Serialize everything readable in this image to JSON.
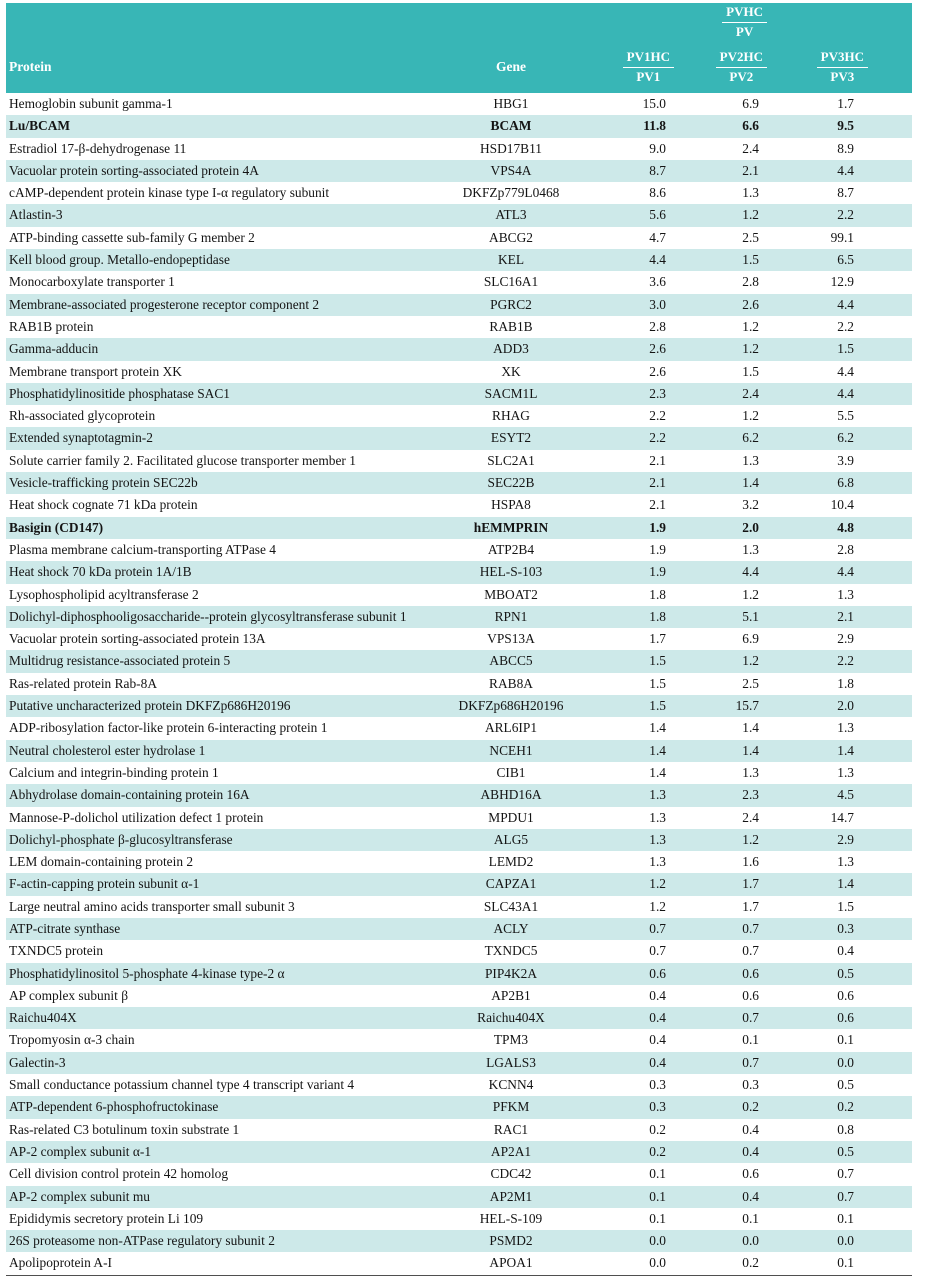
{
  "colors": {
    "header_bg": "#38b6b6",
    "stripe_bg": "#cde9e9",
    "text": "#141414"
  },
  "table": {
    "header": {
      "group_label": {
        "top": "PVHC",
        "bottom": "PV"
      },
      "protein_label": "Protein",
      "gene_label": "Gene",
      "ratio_columns": [
        {
          "top": "PV1HC",
          "bottom": "PV1"
        },
        {
          "top": "PV2HC",
          "bottom": "PV2"
        },
        {
          "top": "PV3HC",
          "bottom": "PV3"
        }
      ]
    },
    "rows": [
      {
        "protein": "Hemoglobin subunit gamma-1",
        "gene": "HBG1",
        "values": [
          "15.0",
          "6.9",
          "1.7"
        ],
        "bold": false
      },
      {
        "protein": "Lu/BCAM",
        "gene": "BCAM",
        "values": [
          "11.8",
          "6.6",
          "9.5"
        ],
        "bold": true
      },
      {
        "protein": "Estradiol 17-β-dehydrogenase 11",
        "gene": "HSD17B11",
        "values": [
          "9.0",
          "2.4",
          "8.9"
        ],
        "bold": false
      },
      {
        "protein": "Vacuolar protein sorting-associated protein 4A",
        "gene": "VPS4A",
        "values": [
          "8.7",
          "2.1",
          "4.4"
        ],
        "bold": false
      },
      {
        "protein": "cAMP-dependent protein kinase type I-α regulatory subunit",
        "gene": "DKFZp779L0468",
        "values": [
          "8.6",
          "1.3",
          "8.7"
        ],
        "bold": false
      },
      {
        "protein": "Atlastin-3",
        "gene": "ATL3",
        "values": [
          "5.6",
          "1.2",
          "2.2"
        ],
        "bold": false
      },
      {
        "protein": "ATP-binding cassette sub-family G member 2",
        "gene": "ABCG2",
        "values": [
          "4.7",
          "2.5",
          "99.1"
        ],
        "bold": false
      },
      {
        "protein": "Kell blood group. Metallo-endopeptidase",
        "gene": "KEL",
        "values": [
          "4.4",
          "1.5",
          "6.5"
        ],
        "bold": false
      },
      {
        "protein": "Monocarboxylate transporter 1",
        "gene": "SLC16A1",
        "values": [
          "3.6",
          "2.8",
          "12.9"
        ],
        "bold": false
      },
      {
        "protein": "Membrane-associated progesterone receptor component 2",
        "gene": "PGRC2",
        "values": [
          "3.0",
          "2.6",
          "4.4"
        ],
        "bold": false
      },
      {
        "protein": "RAB1B protein",
        "gene": "RAB1B",
        "values": [
          "2.8",
          "1.2",
          "2.2"
        ],
        "bold": false
      },
      {
        "protein": "Gamma-adducin",
        "gene": "ADD3",
        "values": [
          "2.6",
          "1.2",
          "1.5"
        ],
        "bold": false
      },
      {
        "protein": "Membrane transport protein XK",
        "gene": "XK",
        "values": [
          "2.6",
          "1.5",
          "4.4"
        ],
        "bold": false
      },
      {
        "protein": "Phosphatidylinositide phosphatase SAC1",
        "gene": "SACM1L",
        "values": [
          "2.3",
          "2.4",
          "4.4"
        ],
        "bold": false
      },
      {
        "protein": "Rh-associated glycoprotein",
        "gene": "RHAG",
        "values": [
          "2.2",
          "1.2",
          "5.5"
        ],
        "bold": false
      },
      {
        "protein": "Extended synaptotagmin-2",
        "gene": "ESYT2",
        "values": [
          "2.2",
          "6.2",
          "6.2"
        ],
        "bold": false
      },
      {
        "protein": "Solute carrier family 2. Facilitated glucose transporter member 1",
        "gene": "SLC2A1",
        "values": [
          "2.1",
          "1.3",
          "3.9"
        ],
        "bold": false
      },
      {
        "protein": "Vesicle-trafficking protein SEC22b",
        "gene": "SEC22B",
        "values": [
          "2.1",
          "1.4",
          "6.8"
        ],
        "bold": false
      },
      {
        "protein": "Heat shock cognate 71 kDa protein",
        "gene": "HSPA8",
        "values": [
          "2.1",
          "3.2",
          "10.4"
        ],
        "bold": false
      },
      {
        "protein": "Basigin (CD147)",
        "gene": "hEMMPRIN",
        "values": [
          "1.9",
          "2.0",
          "4.8"
        ],
        "bold": true
      },
      {
        "protein": "Plasma membrane calcium-transporting ATPase 4",
        "gene": "ATP2B4",
        "values": [
          "1.9",
          "1.3",
          "2.8"
        ],
        "bold": false
      },
      {
        "protein": "Heat shock 70 kDa protein 1A/1B",
        "gene": "HEL-S-103",
        "values": [
          "1.9",
          "4.4",
          "4.4"
        ],
        "bold": false
      },
      {
        "protein": "Lysophospholipid acyltransferase 2",
        "gene": "MBOAT2",
        "values": [
          "1.8",
          "1.2",
          "1.3"
        ],
        "bold": false
      },
      {
        "protein": "Dolichyl-diphosphooligosaccharide--protein glycosyltransferase subunit 1",
        "gene": "RPN1",
        "values": [
          "1.8",
          "5.1",
          "2.1"
        ],
        "bold": false
      },
      {
        "protein": "Vacuolar protein sorting-associated protein 13A",
        "gene": "VPS13A",
        "values": [
          "1.7",
          "6.9",
          "2.9"
        ],
        "bold": false
      },
      {
        "protein": "Multidrug resistance-associated protein 5",
        "gene": "ABCC5",
        "values": [
          "1.5",
          "1.2",
          "2.2"
        ],
        "bold": false
      },
      {
        "protein": "Ras-related protein Rab-8A",
        "gene": "RAB8A",
        "values": [
          "1.5",
          "2.5",
          "1.8"
        ],
        "bold": false
      },
      {
        "protein": "Putative uncharacterized protein DKFZp686H20196",
        "gene": "DKFZp686H20196",
        "values": [
          "1.5",
          "15.7",
          "2.0"
        ],
        "bold": false
      },
      {
        "protein": "ADP-ribosylation factor-like protein 6-interacting protein 1",
        "gene": "ARL6IP1",
        "values": [
          "1.4",
          "1.4",
          "1.3"
        ],
        "bold": false
      },
      {
        "protein": "Neutral cholesterol ester hydrolase 1",
        "gene": "NCEH1",
        "values": [
          "1.4",
          "1.4",
          "1.4"
        ],
        "bold": false
      },
      {
        "protein": "Calcium and integrin-binding protein 1",
        "gene": "CIB1",
        "values": [
          "1.4",
          "1.3",
          "1.3"
        ],
        "bold": false
      },
      {
        "protein": "Abhydrolase domain-containing protein 16A",
        "gene": "ABHD16A",
        "values": [
          "1.3",
          "2.3",
          "4.5"
        ],
        "bold": false
      },
      {
        "protein": "Mannose-P-dolichol utilization defect 1 protein",
        "gene": "MPDU1",
        "values": [
          "1.3",
          "2.4",
          "14.7"
        ],
        "bold": false
      },
      {
        "protein": "Dolichyl-phosphate β-glucosyltransferase",
        "gene": "ALG5",
        "values": [
          "1.3",
          "1.2",
          "2.9"
        ],
        "bold": false
      },
      {
        "protein": "LEM domain-containing protein 2",
        "gene": "LEMD2",
        "values": [
          "1.3",
          "1.6",
          "1.3"
        ],
        "bold": false
      },
      {
        "protein": "F-actin-capping protein subunit α-1",
        "gene": "CAPZA1",
        "values": [
          "1.2",
          "1.7",
          "1.4"
        ],
        "bold": false
      },
      {
        "protein": "Large neutral amino acids transporter small subunit 3",
        "gene": "SLC43A1",
        "values": [
          "1.2",
          "1.7",
          "1.5"
        ],
        "bold": false
      },
      {
        "protein": "ATP-citrate synthase",
        "gene": "ACLY",
        "values": [
          "0.7",
          "0.7",
          "0.3"
        ],
        "bold": false
      },
      {
        "protein": "TXNDC5 protein",
        "gene": "TXNDC5",
        "values": [
          "0.7",
          "0.7",
          "0.4"
        ],
        "bold": false
      },
      {
        "protein": "Phosphatidylinositol 5-phosphate 4-kinase type-2 α",
        "gene": "PIP4K2A",
        "values": [
          "0.6",
          "0.6",
          "0.5"
        ],
        "bold": false
      },
      {
        "protein": "AP complex subunit β",
        "gene": "AP2B1",
        "values": [
          "0.4",
          "0.6",
          "0.6"
        ],
        "bold": false
      },
      {
        "protein": "Raichu404X",
        "gene": "Raichu404X",
        "values": [
          "0.4",
          "0.7",
          "0.6"
        ],
        "bold": false
      },
      {
        "protein": "Tropomyosin α-3 chain",
        "gene": "TPM3",
        "values": [
          "0.4",
          "0.1",
          "0.1"
        ],
        "bold": false
      },
      {
        "protein": "Galectin-3",
        "gene": "LGALS3",
        "values": [
          "0.4",
          "0.7",
          "0.0"
        ],
        "bold": false
      },
      {
        "protein": "Small conductance potassium channel type 4 transcript variant 4",
        "gene": "KCNN4",
        "values": [
          "0.3",
          "0.3",
          "0.5"
        ],
        "bold": false
      },
      {
        "protein": "ATP-dependent 6-phosphofructokinase",
        "gene": "PFKM",
        "values": [
          "0.3",
          "0.2",
          "0.2"
        ],
        "bold": false
      },
      {
        "protein": "Ras-related C3 botulinum toxin substrate 1",
        "gene": "RAC1",
        "values": [
          "0.2",
          "0.4",
          "0.8"
        ],
        "bold": false
      },
      {
        "protein": "AP-2 complex subunit α-1",
        "gene": "AP2A1",
        "values": [
          "0.2",
          "0.4",
          "0.5"
        ],
        "bold": false
      },
      {
        "protein": "Cell division control protein 42 homolog",
        "gene": "CDC42",
        "values": [
          "0.1",
          "0.6",
          "0.7"
        ],
        "bold": false
      },
      {
        "protein": "AP-2 complex subunit mu",
        "gene": "AP2M1",
        "values": [
          "0.1",
          "0.4",
          "0.7"
        ],
        "bold": false
      },
      {
        "protein": "Epididymis secretory protein Li 109",
        "gene": "HEL-S-109",
        "values": [
          "0.1",
          "0.1",
          "0.1"
        ],
        "bold": false
      },
      {
        "protein": "26S proteasome non-ATPase regulatory subunit 2",
        "gene": "PSMD2",
        "values": [
          "0.0",
          "0.0",
          "0.0"
        ],
        "bold": false
      },
      {
        "protein": "Apolipoprotein A-I",
        "gene": "APOA1",
        "values": [
          "0.0",
          "0.2",
          "0.1"
        ],
        "bold": false
      }
    ]
  }
}
